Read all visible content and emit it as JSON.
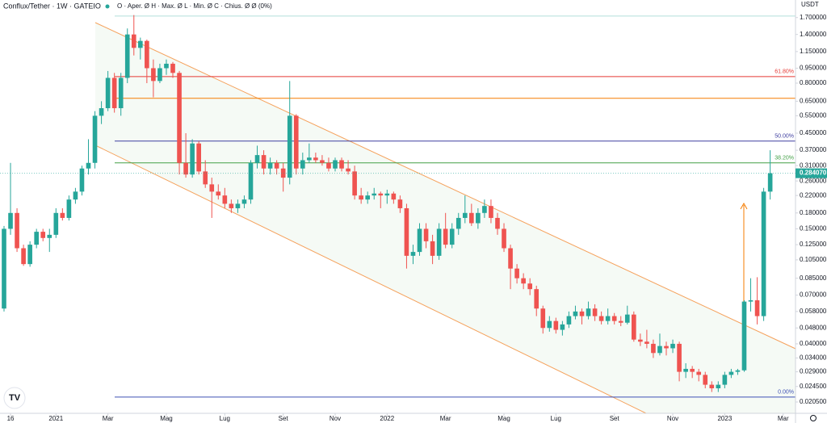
{
  "chart_data": {
    "type": "candlestick",
    "title": "Conflux/Tether · 1W · GATEIO",
    "legend_text": "O · Aper. Ø  H · Max. Ø  L · Min. Ø  C · Chius. Ø  Ø (0%)",
    "y_unit": "USDT",
    "log_scale": true,
    "up_color": "#26a69a",
    "down_color": "#ef5350",
    "xlim": [
      -0.62,
      121.9
    ],
    "ylim": [
      0.018,
      2.08
    ],
    "xticks": [
      {
        "value": 1,
        "label": "16"
      },
      {
        "value": 8,
        "label": "2021"
      },
      {
        "value": 16,
        "label": "Mar"
      },
      {
        "value": 25,
        "label": "Mag"
      },
      {
        "value": 34,
        "label": "Lug"
      },
      {
        "value": 43,
        "label": "Set"
      },
      {
        "value": 51,
        "label": "Nov"
      },
      {
        "value": 59,
        "label": "2022"
      },
      {
        "value": 68,
        "label": "Mar"
      },
      {
        "value": 77,
        "label": "Mag"
      },
      {
        "value": 85,
        "label": "Lug"
      },
      {
        "value": 94,
        "label": "Set"
      },
      {
        "value": 103,
        "label": "Nov"
      },
      {
        "value": 111,
        "label": "2023"
      },
      {
        "value": 120,
        "label": "Mar"
      }
    ],
    "yticks": [
      {
        "value": 1.7,
        "label": "1.700000"
      },
      {
        "value": 1.4,
        "label": "1.400000"
      },
      {
        "value": 1.15,
        "label": "1.150000"
      },
      {
        "value": 0.95,
        "label": "0.950000"
      },
      {
        "value": 0.8,
        "label": "0.800000"
      },
      {
        "value": 0.65,
        "label": "0.650000"
      },
      {
        "value": 0.55,
        "label": "0.550000"
      },
      {
        "value": 0.45,
        "label": "0.450000"
      },
      {
        "value": 0.37,
        "label": "0.370000"
      },
      {
        "value": 0.31,
        "label": "0.310000"
      },
      {
        "value": 0.26,
        "label": "0.260000"
      },
      {
        "value": 0.22,
        "label": "0.220000"
      },
      {
        "value": 0.18,
        "label": "0.180000"
      },
      {
        "value": 0.15,
        "label": "0.150000"
      },
      {
        "value": 0.125,
        "label": "0.125000"
      },
      {
        "value": 0.105,
        "label": "0.105000"
      },
      {
        "value": 0.085,
        "label": "0.085000"
      },
      {
        "value": 0.07,
        "label": "0.070000"
      },
      {
        "value": 0.058,
        "label": "0.058000"
      },
      {
        "value": 0.048,
        "label": "0.048000"
      },
      {
        "value": 0.04,
        "label": "0.040000"
      },
      {
        "value": 0.034,
        "label": "0.034000"
      },
      {
        "value": 0.029,
        "label": "0.029000"
      },
      {
        "value": 0.0245,
        "label": "0.024500"
      },
      {
        "value": 0.0205,
        "label": "0.020500"
      }
    ],
    "last_price": {
      "value": 0.28407,
      "label": "0.284070"
    },
    "levels": [
      {
        "value": 1.73,
        "color": "#b2dfdb"
      },
      {
        "value": 0.863,
        "label": "61.80%",
        "color": "#e53935"
      },
      {
        "value": 0.672,
        "color": "#f57c00"
      },
      {
        "value": 0.411,
        "label": "50.00%",
        "color": "#3f3fa0"
      },
      {
        "value": 0.32,
        "label": "38.20%",
        "color": "#43a047"
      },
      {
        "value": 0.0217,
        "label": "0.00%",
        "color": "#3f51b5"
      }
    ],
    "candles": [
      [
        0.06,
        0.155,
        0.058,
        0.15
      ],
      [
        0.15,
        0.32,
        0.14,
        0.18
      ],
      [
        0.18,
        0.19,
        0.115,
        0.12
      ],
      [
        0.12,
        0.125,
        0.098,
        0.1
      ],
      [
        0.1,
        0.13,
        0.097,
        0.125
      ],
      [
        0.125,
        0.15,
        0.12,
        0.145
      ],
      [
        0.145,
        0.15,
        0.13,
        0.135
      ],
      [
        0.135,
        0.15,
        0.115,
        0.14
      ],
      [
        0.14,
        0.19,
        0.135,
        0.18
      ],
      [
        0.18,
        0.19,
        0.165,
        0.17
      ],
      [
        0.17,
        0.22,
        0.165,
        0.21
      ],
      [
        0.21,
        0.24,
        0.2,
        0.23
      ],
      [
        0.23,
        0.31,
        0.22,
        0.3
      ],
      [
        0.3,
        0.42,
        0.28,
        0.32
      ],
      [
        0.32,
        0.58,
        0.3,
        0.55
      ],
      [
        0.55,
        0.65,
        0.5,
        0.6
      ],
      [
        0.6,
        0.92,
        0.58,
        0.85
      ],
      [
        0.85,
        0.9,
        0.57,
        0.6
      ],
      [
        0.6,
        0.9,
        0.55,
        0.85
      ],
      [
        0.85,
        1.5,
        0.8,
        1.4
      ],
      [
        1.4,
        1.75,
        1.1,
        1.2
      ],
      [
        1.2,
        1.35,
        1.05,
        1.3
      ],
      [
        1.3,
        1.32,
        0.8,
        0.95
      ],
      [
        0.95,
        1.05,
        0.68,
        0.82
      ],
      [
        0.82,
        1.0,
        0.8,
        0.95
      ],
      [
        0.95,
        1.05,
        0.88,
        1.0
      ],
      [
        1.0,
        1.02,
        0.85,
        0.9
      ],
      [
        0.9,
        0.92,
        0.28,
        0.32
      ],
      [
        0.32,
        0.45,
        0.27,
        0.28
      ],
      [
        0.28,
        0.42,
        0.27,
        0.4
      ],
      [
        0.4,
        0.41,
        0.28,
        0.29
      ],
      [
        0.29,
        0.33,
        0.24,
        0.25
      ],
      [
        0.25,
        0.27,
        0.17,
        0.23
      ],
      [
        0.23,
        0.25,
        0.21,
        0.22
      ],
      [
        0.22,
        0.24,
        0.19,
        0.2
      ],
      [
        0.2,
        0.21,
        0.18,
        0.19
      ],
      [
        0.19,
        0.21,
        0.18,
        0.2
      ],
      [
        0.2,
        0.22,
        0.19,
        0.21
      ],
      [
        0.21,
        0.33,
        0.2,
        0.32
      ],
      [
        0.32,
        0.39,
        0.3,
        0.35
      ],
      [
        0.35,
        0.37,
        0.28,
        0.3
      ],
      [
        0.3,
        0.34,
        0.28,
        0.32
      ],
      [
        0.32,
        0.33,
        0.28,
        0.3
      ],
      [
        0.3,
        0.32,
        0.23,
        0.27
      ],
      [
        0.27,
        0.82,
        0.25,
        0.55
      ],
      [
        0.55,
        0.56,
        0.28,
        0.3
      ],
      [
        0.3,
        0.36,
        0.28,
        0.33
      ],
      [
        0.33,
        0.4,
        0.32,
        0.34
      ],
      [
        0.34,
        0.36,
        0.32,
        0.33
      ],
      [
        0.33,
        0.35,
        0.31,
        0.32
      ],
      [
        0.32,
        0.34,
        0.29,
        0.3
      ],
      [
        0.3,
        0.34,
        0.29,
        0.33
      ],
      [
        0.33,
        0.34,
        0.29,
        0.3
      ],
      [
        0.3,
        0.33,
        0.28,
        0.29
      ],
      [
        0.29,
        0.31,
        0.21,
        0.22
      ],
      [
        0.22,
        0.24,
        0.2,
        0.21
      ],
      [
        0.21,
        0.23,
        0.2,
        0.22
      ],
      [
        0.22,
        0.24,
        0.21,
        0.225
      ],
      [
        0.225,
        0.23,
        0.19,
        0.22
      ],
      [
        0.22,
        0.235,
        0.2,
        0.225
      ],
      [
        0.225,
        0.23,
        0.2,
        0.21
      ],
      [
        0.21,
        0.22,
        0.18,
        0.19
      ],
      [
        0.19,
        0.2,
        0.095,
        0.11
      ],
      [
        0.11,
        0.125,
        0.1,
        0.115
      ],
      [
        0.115,
        0.16,
        0.11,
        0.15
      ],
      [
        0.15,
        0.16,
        0.12,
        0.13
      ],
      [
        0.13,
        0.14,
        0.1,
        0.11
      ],
      [
        0.11,
        0.16,
        0.105,
        0.15
      ],
      [
        0.15,
        0.18,
        0.12,
        0.125
      ],
      [
        0.125,
        0.16,
        0.12,
        0.15
      ],
      [
        0.15,
        0.18,
        0.14,
        0.17
      ],
      [
        0.17,
        0.22,
        0.16,
        0.18
      ],
      [
        0.18,
        0.2,
        0.155,
        0.16
      ],
      [
        0.16,
        0.19,
        0.15,
        0.18
      ],
      [
        0.18,
        0.21,
        0.17,
        0.195
      ],
      [
        0.195,
        0.21,
        0.16,
        0.17
      ],
      [
        0.17,
        0.18,
        0.14,
        0.15
      ],
      [
        0.15,
        0.16,
        0.115,
        0.12
      ],
      [
        0.12,
        0.125,
        0.075,
        0.095
      ],
      [
        0.095,
        0.1,
        0.08,
        0.085
      ],
      [
        0.085,
        0.09,
        0.075,
        0.08
      ],
      [
        0.08,
        0.085,
        0.07,
        0.075
      ],
      [
        0.075,
        0.078,
        0.055,
        0.06
      ],
      [
        0.06,
        0.062,
        0.045,
        0.048
      ],
      [
        0.048,
        0.055,
        0.046,
        0.052
      ],
      [
        0.052,
        0.054,
        0.045,
        0.047
      ],
      [
        0.047,
        0.052,
        0.044,
        0.05
      ],
      [
        0.05,
        0.058,
        0.048,
        0.055
      ],
      [
        0.055,
        0.062,
        0.053,
        0.058
      ],
      [
        0.058,
        0.06,
        0.05,
        0.055
      ],
      [
        0.055,
        0.065,
        0.053,
        0.06
      ],
      [
        0.06,
        0.063,
        0.052,
        0.055
      ],
      [
        0.055,
        0.058,
        0.05,
        0.052
      ],
      [
        0.052,
        0.06,
        0.05,
        0.055
      ],
      [
        0.055,
        0.057,
        0.05,
        0.052
      ],
      [
        0.052,
        0.055,
        0.049,
        0.051
      ],
      [
        0.051,
        0.062,
        0.05,
        0.056
      ],
      [
        0.056,
        0.058,
        0.041,
        0.042
      ],
      [
        0.042,
        0.045,
        0.039,
        0.041
      ],
      [
        0.041,
        0.047,
        0.038,
        0.04
      ],
      [
        0.04,
        0.042,
        0.034,
        0.036
      ],
      [
        0.036,
        0.045,
        0.035,
        0.039
      ],
      [
        0.039,
        0.041,
        0.035,
        0.038
      ],
      [
        0.038,
        0.042,
        0.036,
        0.04
      ],
      [
        0.04,
        0.041,
        0.026,
        0.029
      ],
      [
        0.029,
        0.032,
        0.027,
        0.03
      ],
      [
        0.03,
        0.031,
        0.027,
        0.029
      ],
      [
        0.029,
        0.03,
        0.026,
        0.028
      ],
      [
        0.028,
        0.029,
        0.024,
        0.025
      ],
      [
        0.025,
        0.026,
        0.023,
        0.024
      ],
      [
        0.024,
        0.026,
        0.023,
        0.025
      ],
      [
        0.025,
        0.029,
        0.024,
        0.028
      ],
      [
        0.028,
        0.03,
        0.027,
        0.029
      ],
      [
        0.029,
        0.03,
        0.028,
        0.0295
      ],
      [
        0.0295,
        0.066,
        0.029,
        0.065
      ],
      [
        0.065,
        0.085,
        0.058,
        0.066
      ],
      [
        0.066,
        0.086,
        0.05,
        0.055
      ],
      [
        0.055,
        0.24,
        0.052,
        0.23
      ],
      [
        0.23,
        0.37,
        0.21,
        0.28407
      ]
    ]
  }
}
